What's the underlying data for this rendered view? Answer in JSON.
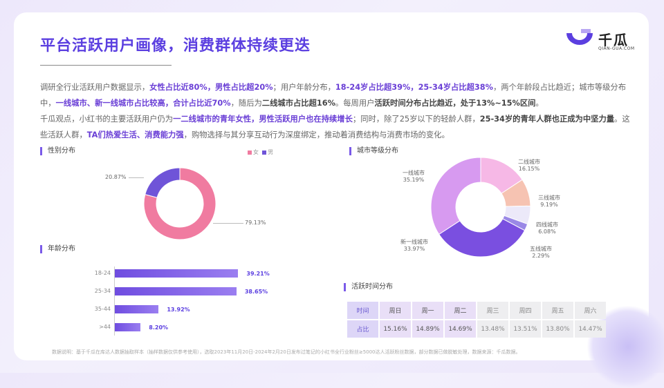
{
  "title": "平台活跃用户画像，消费群体持续更迭",
  "logo": {
    "name": "千瓜",
    "sub": "QIAN-GUA.COM"
  },
  "paragraph": {
    "p1": "调研全行业活跃用户数据显示，",
    "h1": "女性占比近80%，男性占比超20%",
    "p2": "；用户年龄分布，",
    "h2": "18-24岁占比超39%，25-34岁占比超38%",
    "p3": "，两个年龄段占比趋近；城市等级分布中，",
    "h3": "一线城市、新一线城市占比较高，合计占比近70%",
    "p4": "，随后为",
    "h4": "二线城市占比超16%",
    "p5": "。每周用户",
    "h5": "活跃时间分布占比趋近，处于13%~15%区间",
    "p6": "。",
    "p7": "千瓜观点，小红书的主要活跃用户仍为",
    "h6": "一二线城市的青年女性，男性活跃用户也在持续增长",
    "p8": "；同时，除了25岁以下的轻龄人群，",
    "h7": "25-34岁的青年人群也正成为中坚力量",
    "p9": "。这些活跃人群，",
    "h8": "TA们热爱生活、消费能力强",
    "p10": "，购物选择与其分享互动行为深度绑定，推动着消费结构与消费市场的变化。"
  },
  "sections": {
    "gender": "性别分布",
    "age": "年龄分布",
    "city": "城市等级分布",
    "time": "活跃时间分布"
  },
  "legend": {
    "female": "女",
    "male": "男"
  },
  "colors": {
    "female": "#f07ba0",
    "male": "#6f54d8"
  },
  "chart_data": [
    {
      "type": "pie",
      "categories": [
        "女",
        "男"
      ],
      "values": [
        79.13,
        20.87
      ],
      "labels": [
        "79.13%",
        "20.87%"
      ]
    },
    {
      "type": "bar",
      "categories": [
        "18-24",
        "25-34",
        "35-44",
        ">44"
      ],
      "values": [
        39.21,
        38.65,
        13.92,
        8.2
      ],
      "labels": [
        "39.21%",
        "38.65%",
        "13.92%",
        "8.20%"
      ]
    },
    {
      "type": "pie",
      "categories": [
        "二线城市",
        "三线城市",
        "四线城市",
        "五线城市",
        "新一线城市",
        "一线城市"
      ],
      "values": [
        16.15,
        9.19,
        6.08,
        2.29,
        33.97,
        35.19
      ],
      "labels": [
        "16.15%",
        "9.19%",
        "6.08%",
        "2.29%",
        "33.97%",
        "35.19%"
      ],
      "colors": [
        "#f6b8e6",
        "#f6c3b2",
        "#ece9f9",
        "#9a88e6",
        "#7a4fe0",
        "#d79af0"
      ]
    },
    {
      "type": "table",
      "row_header": [
        "时间",
        "占比"
      ],
      "columns": [
        "周日",
        "周一",
        "周二",
        "周三",
        "周四",
        "周五",
        "周六"
      ],
      "values": [
        "15.16%",
        "14.89%",
        "14.69%",
        "13.48%",
        "13.51%",
        "13.80%",
        "14.47%"
      ]
    }
  ],
  "footnote": "数据说明：基于千瓜在库达人数据抽取样本（抽样数据仅供参考使用），选取2023年11月20日-2024年2月20日发布过笔记的小红书全行业粉丝≥5000达人活跃粉丝数据，部分数据已做脱敏处理，数据来源：千瓜数据。"
}
